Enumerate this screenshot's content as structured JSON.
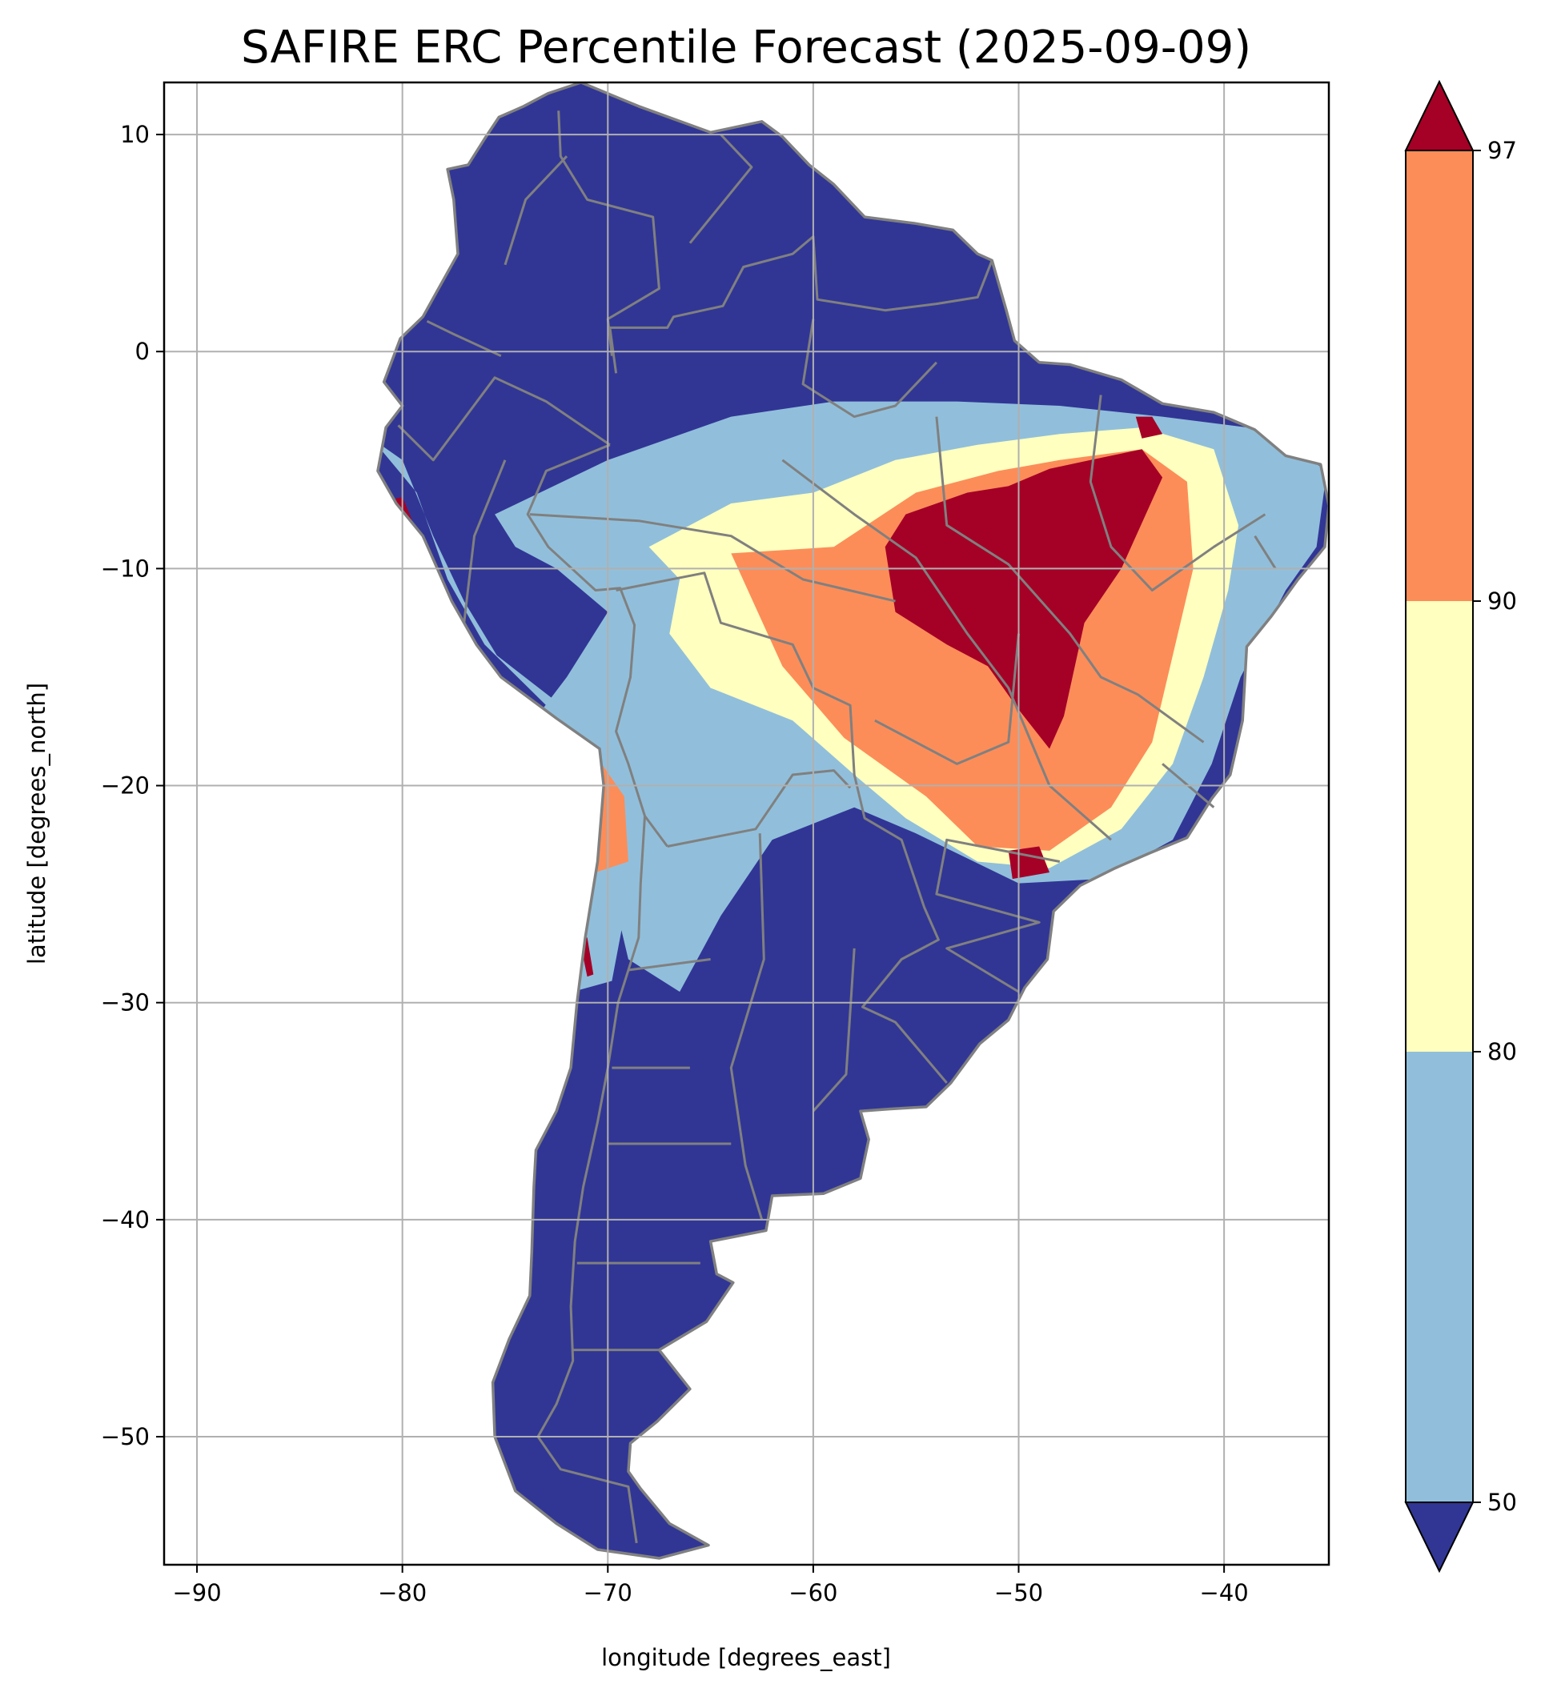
{
  "title": "SAFIRE ERC Percentile Forecast (2025-09-09)",
  "x_axis": {
    "label": "longitude [degrees_east]",
    "range": [
      -91.6,
      -34.9
    ],
    "ticks": [
      -90,
      -80,
      -70,
      -60,
      -50,
      -40
    ],
    "tick_labels": [
      "−90",
      "−80",
      "−70",
      "−60",
      "−50",
      "−40"
    ]
  },
  "y_axis": {
    "label": "latitude [degrees_north]",
    "range": [
      -55.9,
      12.4
    ],
    "ticks": [
      10,
      0,
      -10,
      -20,
      -30,
      -40,
      -50
    ],
    "tick_labels": [
      "10",
      "0",
      "−10",
      "−20",
      "−30",
      "−40",
      "−50"
    ]
  },
  "grid": true,
  "colorbar": {
    "placement": "right",
    "extend": "both",
    "levels": [
      50,
      80,
      90,
      97
    ],
    "tick_labels": [
      "50",
      "80",
      "90",
      "97"
    ],
    "colors": {
      "below_50": "#313695",
      "50_80": "#91bfdb",
      "80_90": "#ffffbf",
      "90_97": "#fc8d59",
      "above_97": "#a50026"
    }
  },
  "map": {
    "region": "South America",
    "land_default_class": "below_50",
    "border_color": "#808080",
    "ocean_color": "#ffffff"
  }
}
